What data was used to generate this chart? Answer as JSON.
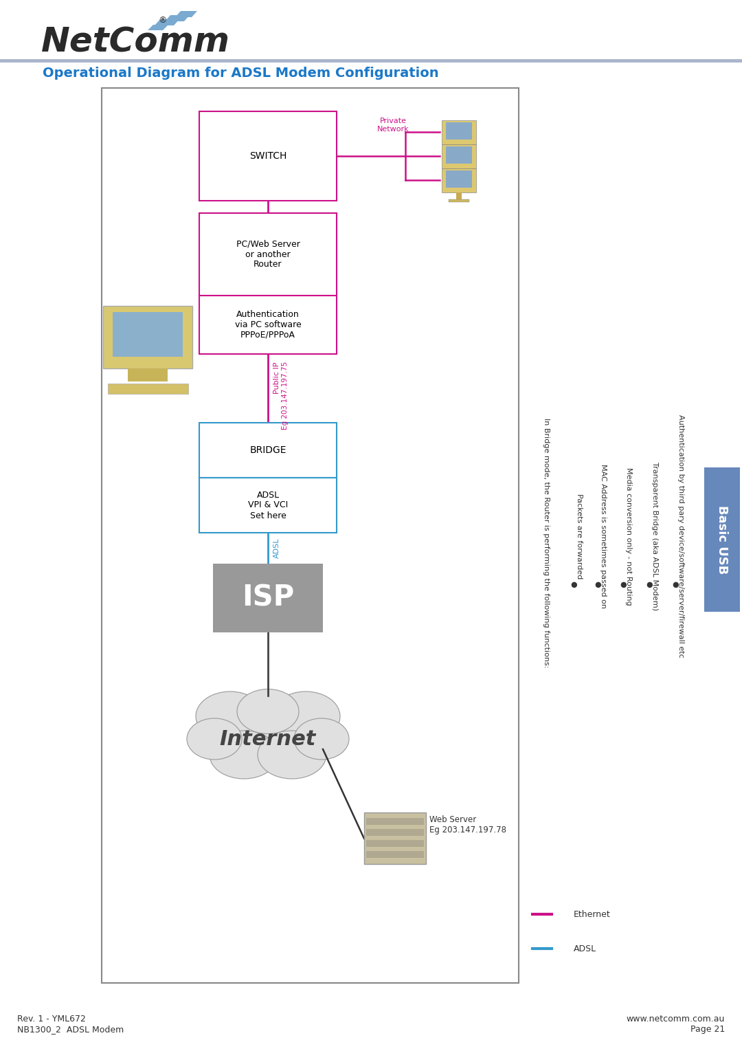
{
  "title": "Operational Diagram for ADSL Modem Configuration",
  "title_color": "#1b78c8",
  "background_color": "#ffffff",
  "magenta": "#cc1188",
  "cyan_box": "#3399cc",
  "footer_left": "Rev. 1 - YML672\nNB1300_2  ADSL Modem",
  "footer_right": "www.netcomm.com.au\nPage 21",
  "basic_usb_label": "Basic USB",
  "side_note_intro": "In Bridge mode, the Router is performing the following functions:",
  "bullets": [
    "Packets are forwarded",
    "MAC Address is sometimes passed on",
    "Media conversion only - not Routing",
    "Transparent Bridge (aka ADSL Modem)",
    "Authentication by third pary device/software/server/firewall etc"
  ],
  "public_ip_label": "Public IP",
  "public_ip_eg": "Eg 203.147.197.75",
  "adsl_line_label": "ADSL",
  "private_network_label": "Private\nNetwork",
  "web_server_label": "Web Server\nEg 203.147.197.78",
  "ethernet_label": "Ethernet",
  "adsl_legend_label": "ADSL",
  "internet_label": "Internet",
  "isp_label": "ISP"
}
